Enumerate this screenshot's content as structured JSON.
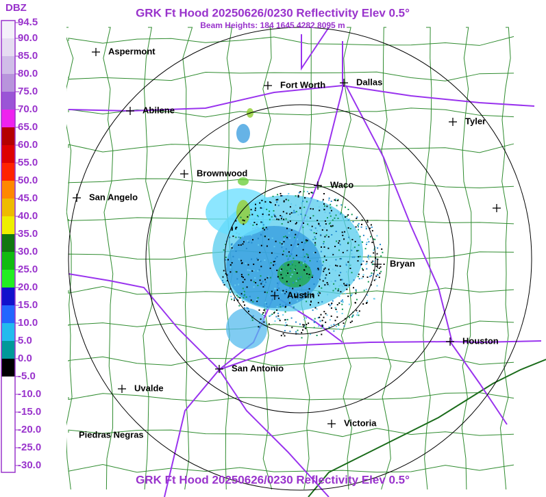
{
  "header": {
    "title": "GRK Ft Hood 20250626/0230 Reflectivity Elev 0.5°",
    "subtitle": "Beam Heights: 184 1645 4282 8095 m"
  },
  "legend": {
    "unit": "DBZ",
    "labels": [
      "94.5",
      "90.0",
      "85.0",
      "80.0",
      "75.0",
      "70.0",
      "65.0",
      "60.0",
      "55.0",
      "50.0",
      "45.0",
      "40.0",
      "35.0",
      "30.0",
      "25.0",
      "20.0",
      "15.0",
      "10.0",
      "5.0",
      "0.0",
      "-5.0",
      "-10.0",
      "-15.0",
      "-20.0",
      "-25.0",
      "-30.0"
    ]
  },
  "map": {
    "cities": [
      {
        "label": "Aspermont"
      },
      {
        "label": "Fort Worth"
      },
      {
        "label": "Dallas"
      },
      {
        "label": "Abilene"
      },
      {
        "label": "Tyler"
      },
      {
        "label": "Brownwood"
      },
      {
        "label": "Waco"
      },
      {
        "label": "San Angelo"
      },
      {
        "label": "Bryan"
      },
      {
        "label": "Austin"
      },
      {
        "label": "Houston"
      },
      {
        "label": "San Antonio"
      },
      {
        "label": "Uvalde"
      },
      {
        "label": "Victoria"
      },
      {
        "label": "Piedras Negras"
      }
    ]
  },
  "footer": {
    "title": "GRK Ft Hood 20250626/0230 Reflectivity Elev 0.5°"
  }
}
